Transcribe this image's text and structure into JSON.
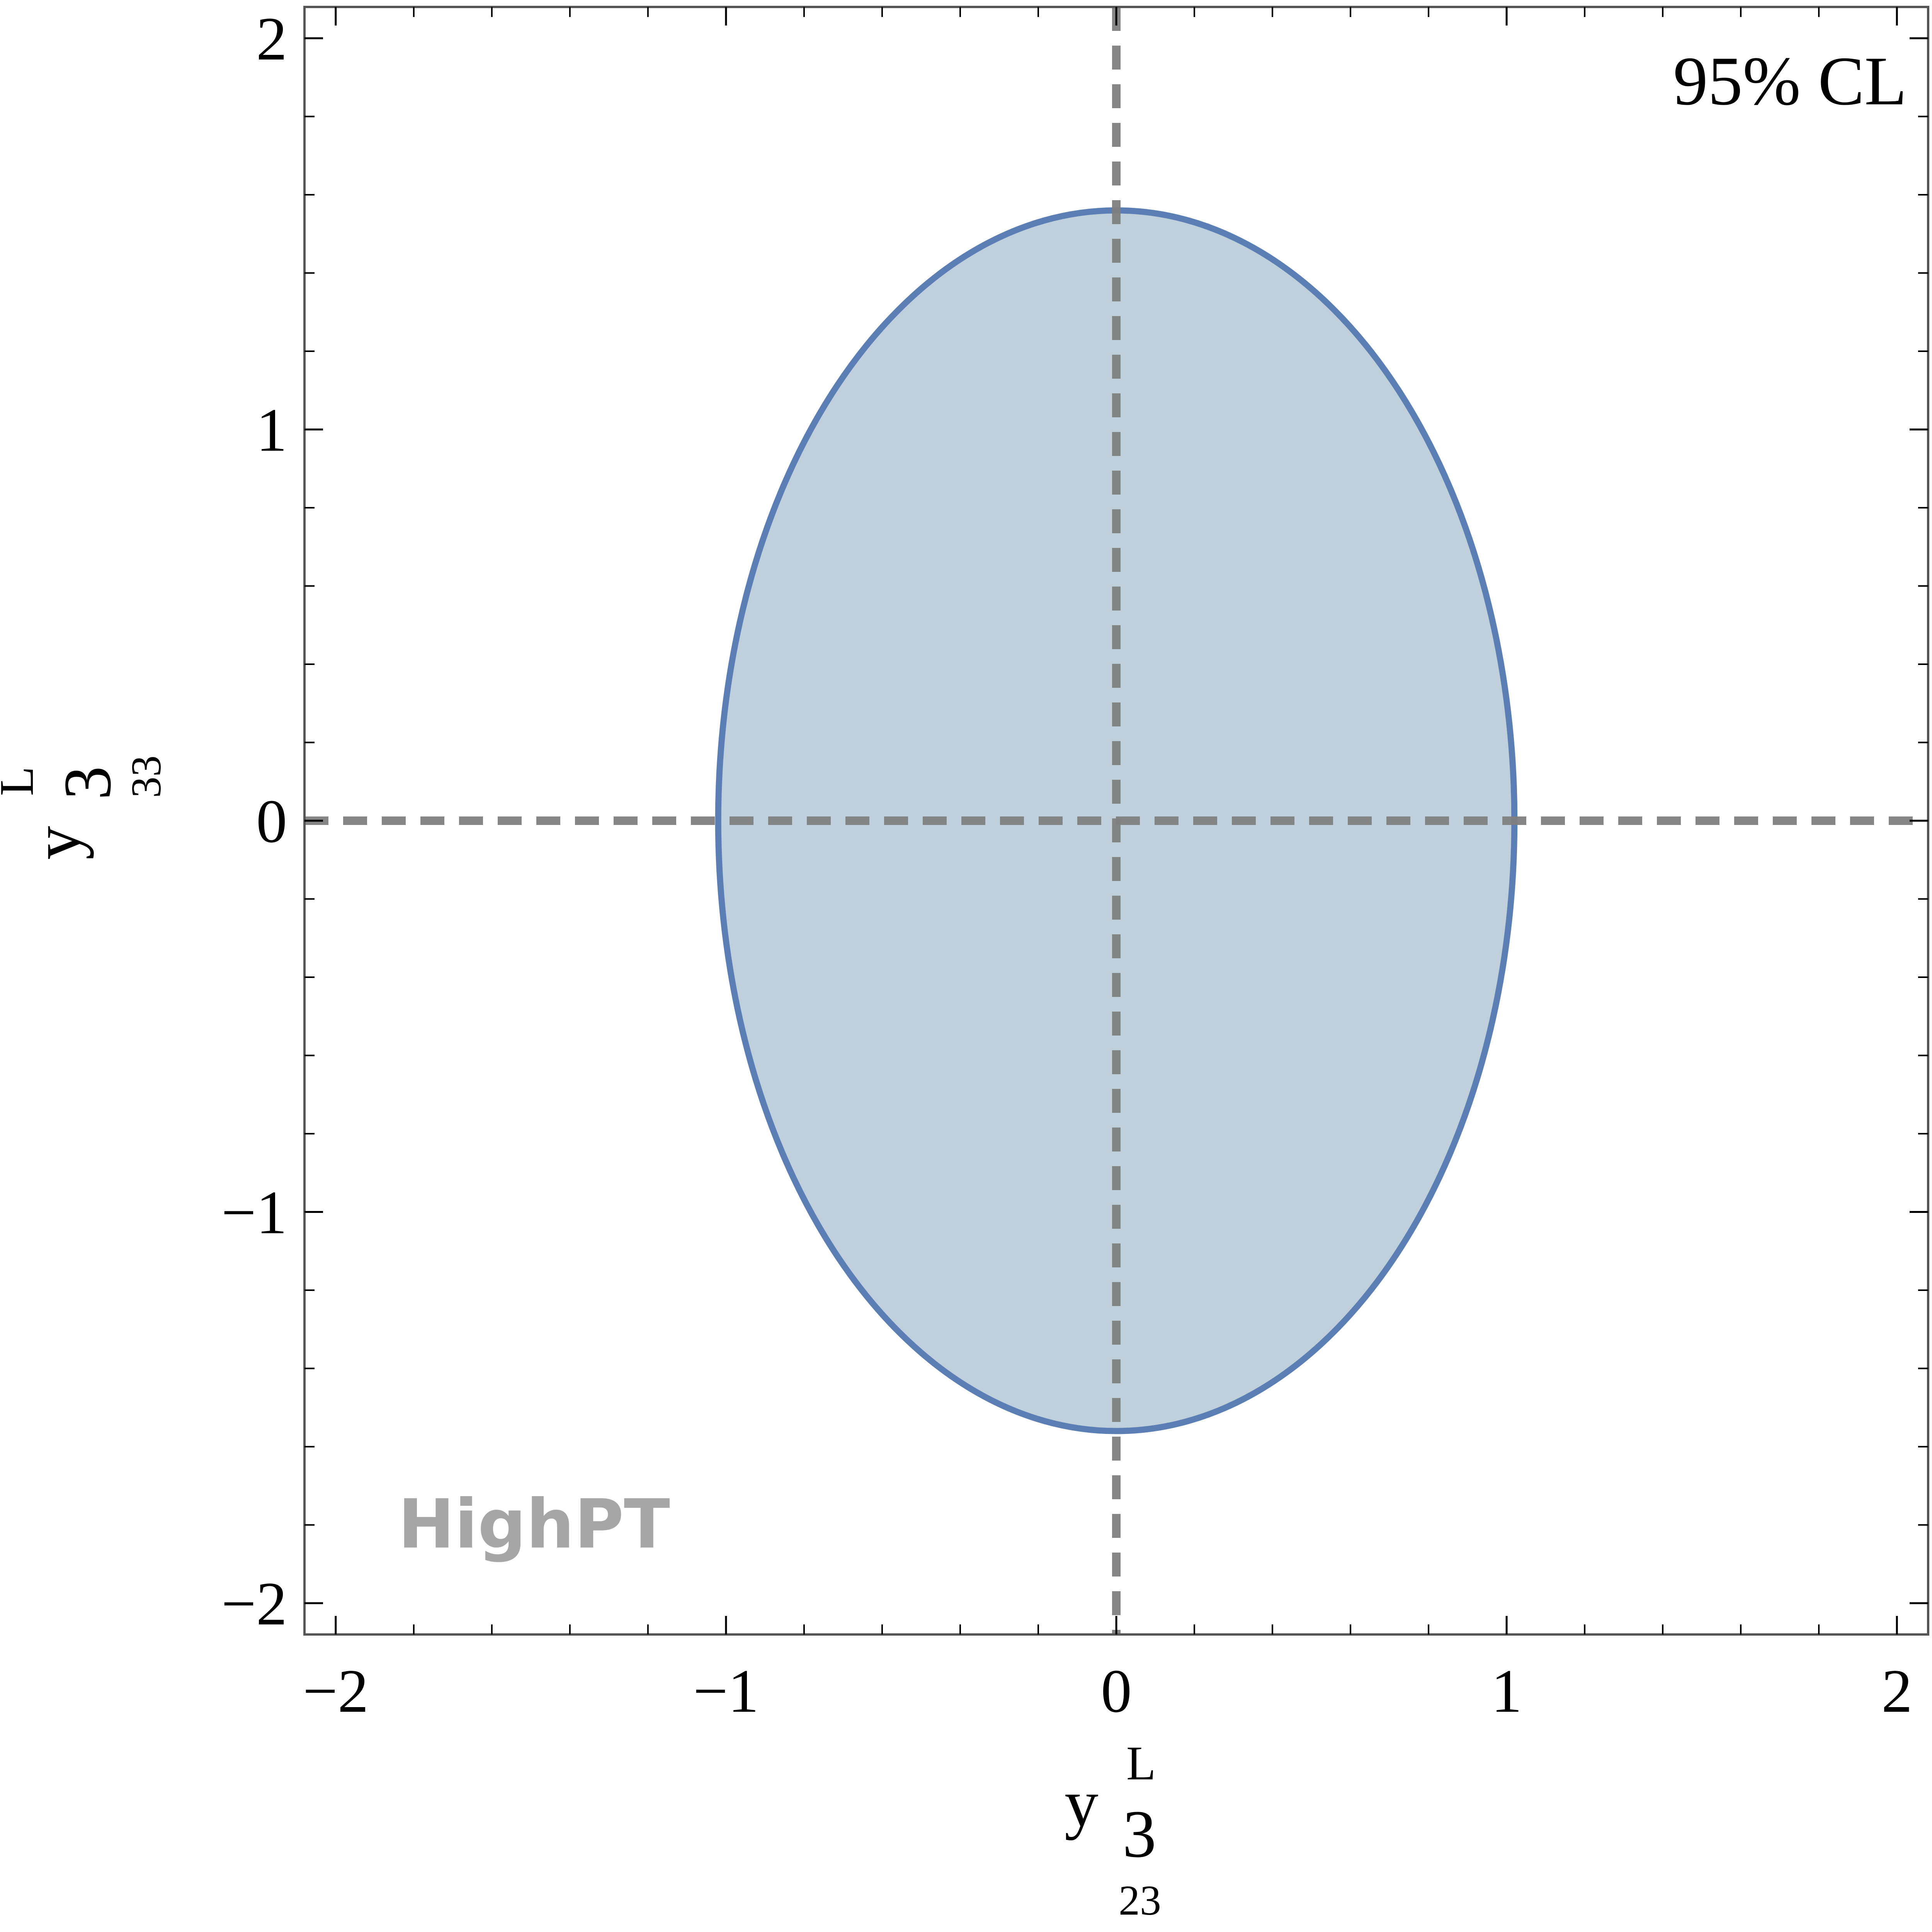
{
  "chart_data": {
    "type": "area",
    "title": "",
    "annotation": "95% CL",
    "watermark": "HighPT",
    "xlabel": {
      "main": "y",
      "sup": "L",
      "sup_sub": "3",
      "sub": "23"
    },
    "ylabel": {
      "main": "y",
      "sup": "L",
      "sup_sub": "3",
      "sub": "33"
    },
    "xlim": [
      -2.08,
      2.08
    ],
    "ylim": [
      -2.08,
      2.08
    ],
    "x_ticks": [
      -2,
      -1,
      0,
      1,
      2
    ],
    "y_ticks": [
      -2,
      -1,
      0,
      1,
      2
    ],
    "x_tick_labels": [
      "−2",
      "−1",
      "0",
      "1",
      "2"
    ],
    "y_tick_labels": [
      "−2",
      "−1",
      "0",
      "1",
      "2"
    ],
    "minor_tick_step": 0.2,
    "grid": false,
    "reference_lines": {
      "x": 0,
      "y": 0,
      "style": "dashed",
      "color": "#808080"
    },
    "regions": [
      {
        "shape": "ellipse",
        "center": [
          0,
          0
        ],
        "x_semi_axis": 1.02,
        "y_semi_axis": 1.56,
        "fill": "#bfd0dc",
        "stroke": "#5b7fb5"
      }
    ],
    "frame_color": "#555555"
  }
}
